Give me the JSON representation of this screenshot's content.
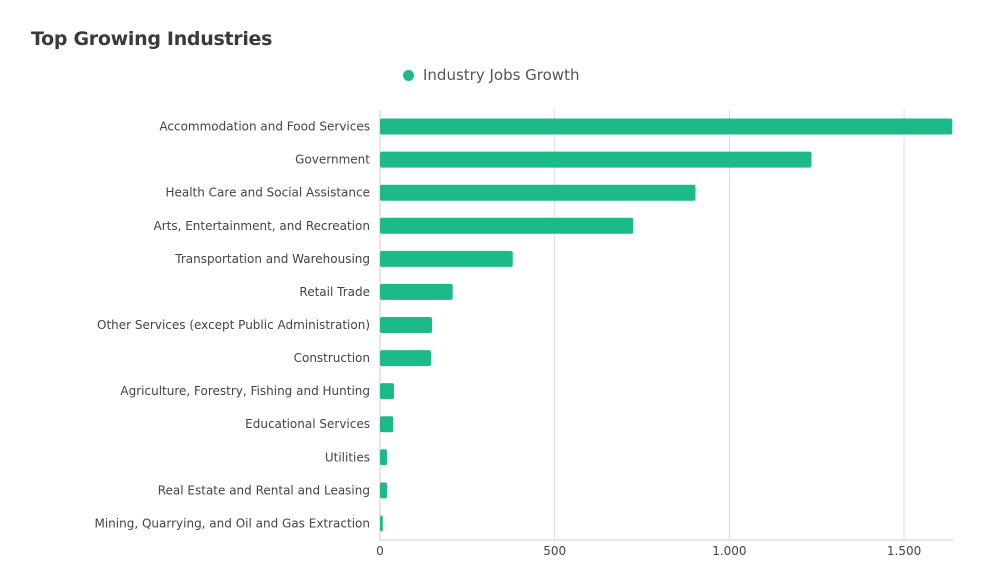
{
  "title": "Top Growing Industries",
  "legend": {
    "label": "Industry Jobs Growth",
    "color": "#1dba89"
  },
  "chart_data": {
    "type": "bar",
    "orientation": "horizontal",
    "title": "Top Growing Industries",
    "xlabel": "",
    "ylabel": "",
    "xlim": [
      0,
      1640
    ],
    "x_ticks": [
      0,
      500,
      1000,
      1500
    ],
    "x_tick_labels": [
      "0",
      "500",
      "1.000",
      "1.500"
    ],
    "grid": "vertical",
    "legend_position": "top-center",
    "bar_color": "#1dba89",
    "categories": [
      "Accommodation and Food Services",
      "Government",
      "Health Care and Social Assistance",
      "Arts, Entertainment, and Recreation",
      "Transportation and Warehousing",
      "Retail Trade",
      "Other Services (except Public Administration)",
      "Construction",
      "Agriculture, Forestry, Fishing and Hunting",
      "Educational Services",
      "Utilities",
      "Real Estate and Rental and Leasing",
      "Mining, Quarrying, and Oil and Gas Extraction"
    ],
    "series": [
      {
        "name": "Industry Jobs Growth",
        "values": [
          1638,
          1235,
          903,
          725,
          380,
          208,
          149,
          146,
          40,
          38,
          20,
          20,
          8
        ]
      }
    ]
  }
}
